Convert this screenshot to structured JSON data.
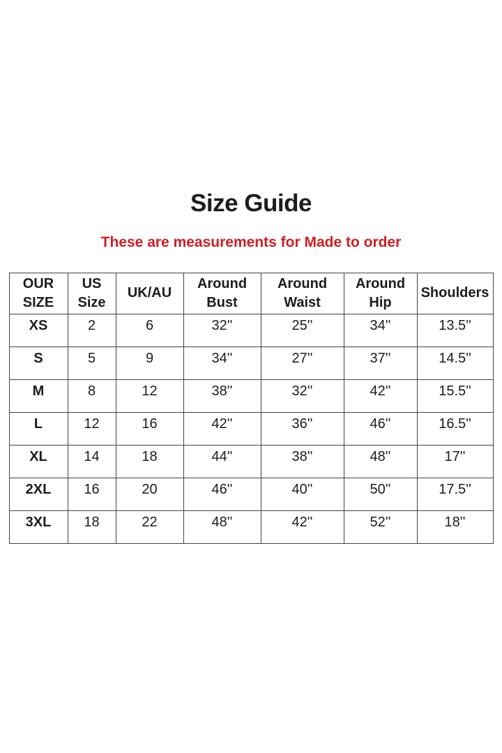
{
  "page": {
    "title": "Size Guide",
    "subtitle": "These are measurements for Made to order"
  },
  "colors": {
    "bg": "#ffffff",
    "text": "#1c1c1c",
    "subtitle": "#cb2026",
    "border": "#424242"
  },
  "table": {
    "columns": [
      "OUR SIZE",
      "US Size",
      "UK/AU",
      "Around Bust",
      "Around Waist",
      "Around Hip",
      "Shoulders"
    ],
    "rows": [
      [
        "XS",
        "2",
        "6",
        "32''",
        "25''",
        "34''",
        "13.5''"
      ],
      [
        "S",
        "5",
        "9",
        "34''",
        "27''",
        "37''",
        "14.5''"
      ],
      [
        "M",
        "8",
        "12",
        "38''",
        "32''",
        "42''",
        "15.5''"
      ],
      [
        "L",
        "12",
        "16",
        "42''",
        "36''",
        "46''",
        "16.5''"
      ],
      [
        "XL",
        "14",
        "18",
        "44''",
        "38''",
        "48''",
        "17''"
      ],
      [
        "2XL",
        "16",
        "20",
        "46''",
        "40''",
        "50''",
        "17.5''"
      ],
      [
        "3XL",
        "18",
        "22",
        "48''",
        "42''",
        "52''",
        "18''"
      ]
    ]
  }
}
